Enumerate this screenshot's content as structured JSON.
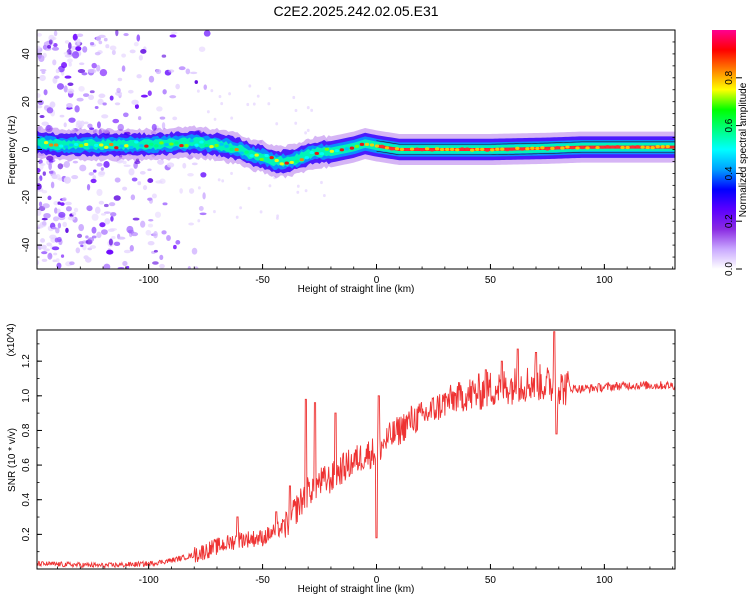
{
  "figure": {
    "title": "C2E2.2025.242.02.05.E31"
  },
  "colors": {
    "axis": "#000000",
    "snr_line": "#ee3333",
    "spectrogram_background": "#ffffff",
    "colormap": [
      "#ffffff",
      "#c9a8ff",
      "#8a2be2",
      "#5a00ff",
      "#0000ff",
      "#00a0ff",
      "#00ffff",
      "#00ff80",
      "#00ff00",
      "#ffff00",
      "#ff8000",
      "#ff0000",
      "#ff0090"
    ]
  },
  "chart_data": [
    {
      "type": "heatmap",
      "title": "",
      "xlabel": "Height of straight line (km)",
      "ylabel": "Frequency (Hz)",
      "xlim": [
        -149,
        131
      ],
      "ylim": [
        -50,
        50
      ],
      "xticks": [
        -100,
        -50,
        0,
        50,
        100
      ],
      "yticks": [
        -40,
        -20,
        0,
        20,
        40
      ],
      "grid": false,
      "colorbar": {
        "label": "Normalized spectral amplitude",
        "range": [
          0,
          1
        ],
        "ticks": [
          "0.0",
          "0.2",
          "0.4",
          "0.6",
          "0.8"
        ]
      },
      "ridge_center_hz": [
        [
          -149,
          3
        ],
        [
          -140,
          2
        ],
        [
          -130,
          2
        ],
        [
          -120,
          2
        ],
        [
          -110,
          2
        ],
        [
          -100,
          2
        ],
        [
          -90,
          2.5
        ],
        [
          -80,
          3
        ],
        [
          -70,
          2
        ],
        [
          -60,
          0
        ],
        [
          -55,
          -2
        ],
        [
          -50,
          -3
        ],
        [
          -45,
          -5
        ],
        [
          -40,
          -5
        ],
        [
          -35,
          -4
        ],
        [
          -30,
          -2
        ],
        [
          -25,
          -1
        ],
        [
          -20,
          -1
        ],
        [
          -15,
          0
        ],
        [
          -10,
          1
        ],
        [
          -5,
          2.5
        ],
        [
          0,
          1.5
        ],
        [
          10,
          0
        ],
        [
          50,
          0
        ],
        [
          75,
          0.5
        ],
        [
          90,
          1
        ],
        [
          110,
          1
        ],
        [
          131,
          1
        ]
      ],
      "noisy_region_km": [
        -149,
        -80
      ]
    },
    {
      "type": "line",
      "title": "",
      "xlabel": "Height of straight line (km)",
      "ylabel": "SNR (10 * v/v)",
      "y_multiplier": "(x10^4)",
      "xlim": [
        -149,
        131
      ],
      "ylim": [
        0,
        1.38
      ],
      "xticks": [
        -100,
        -50,
        0,
        50,
        100
      ],
      "yticks": [
        0.2,
        0.4,
        0.6,
        0.8,
        1.0,
        1.2
      ],
      "grid": false,
      "series": [
        {
          "trend": [
            [
              -149,
              0.03
            ],
            [
              -120,
              0.02
            ],
            [
              -100,
              0.03
            ],
            [
              -90,
              0.05
            ],
            [
              -80,
              0.08
            ],
            [
              -70,
              0.13
            ],
            [
              -60,
              0.17
            ],
            [
              -50,
              0.18
            ],
            [
              -40,
              0.25
            ],
            [
              -35,
              0.35
            ],
            [
              -30,
              0.45
            ],
            [
              -25,
              0.5
            ],
            [
              -20,
              0.52
            ],
            [
              -15,
              0.58
            ],
            [
              -10,
              0.62
            ],
            [
              -5,
              0.66
            ],
            [
              0,
              0.68
            ],
            [
              5,
              0.75
            ],
            [
              10,
              0.8
            ],
            [
              15,
              0.86
            ],
            [
              20,
              0.88
            ],
            [
              25,
              0.92
            ],
            [
              30,
              0.96
            ],
            [
              35,
              0.99
            ],
            [
              40,
              1.0
            ],
            [
              45,
              1.02
            ],
            [
              50,
              1.04
            ],
            [
              60,
              1.06
            ],
            [
              70,
              1.08
            ],
            [
              80,
              1.05
            ],
            [
              90,
              1.04
            ],
            [
              100,
              1.05
            ],
            [
              110,
              1.06
            ],
            [
              120,
              1.06
            ],
            [
              131,
              1.06
            ]
          ],
          "spikes": [
            [
              -61,
              0.3
            ],
            [
              -44,
              0.33
            ],
            [
              -38,
              0.48
            ],
            [
              -31,
              0.98
            ],
            [
              -27,
              0.96
            ],
            [
              -18,
              0.9
            ],
            [
              1,
              1.0
            ],
            [
              0,
              0.18
            ],
            [
              48,
              1.15
            ],
            [
              55,
              1.2
            ],
            [
              62,
              1.27
            ],
            [
              70,
              1.25
            ],
            [
              78,
              1.37
            ],
            [
              79,
              0.78
            ]
          ]
        }
      ]
    }
  ]
}
